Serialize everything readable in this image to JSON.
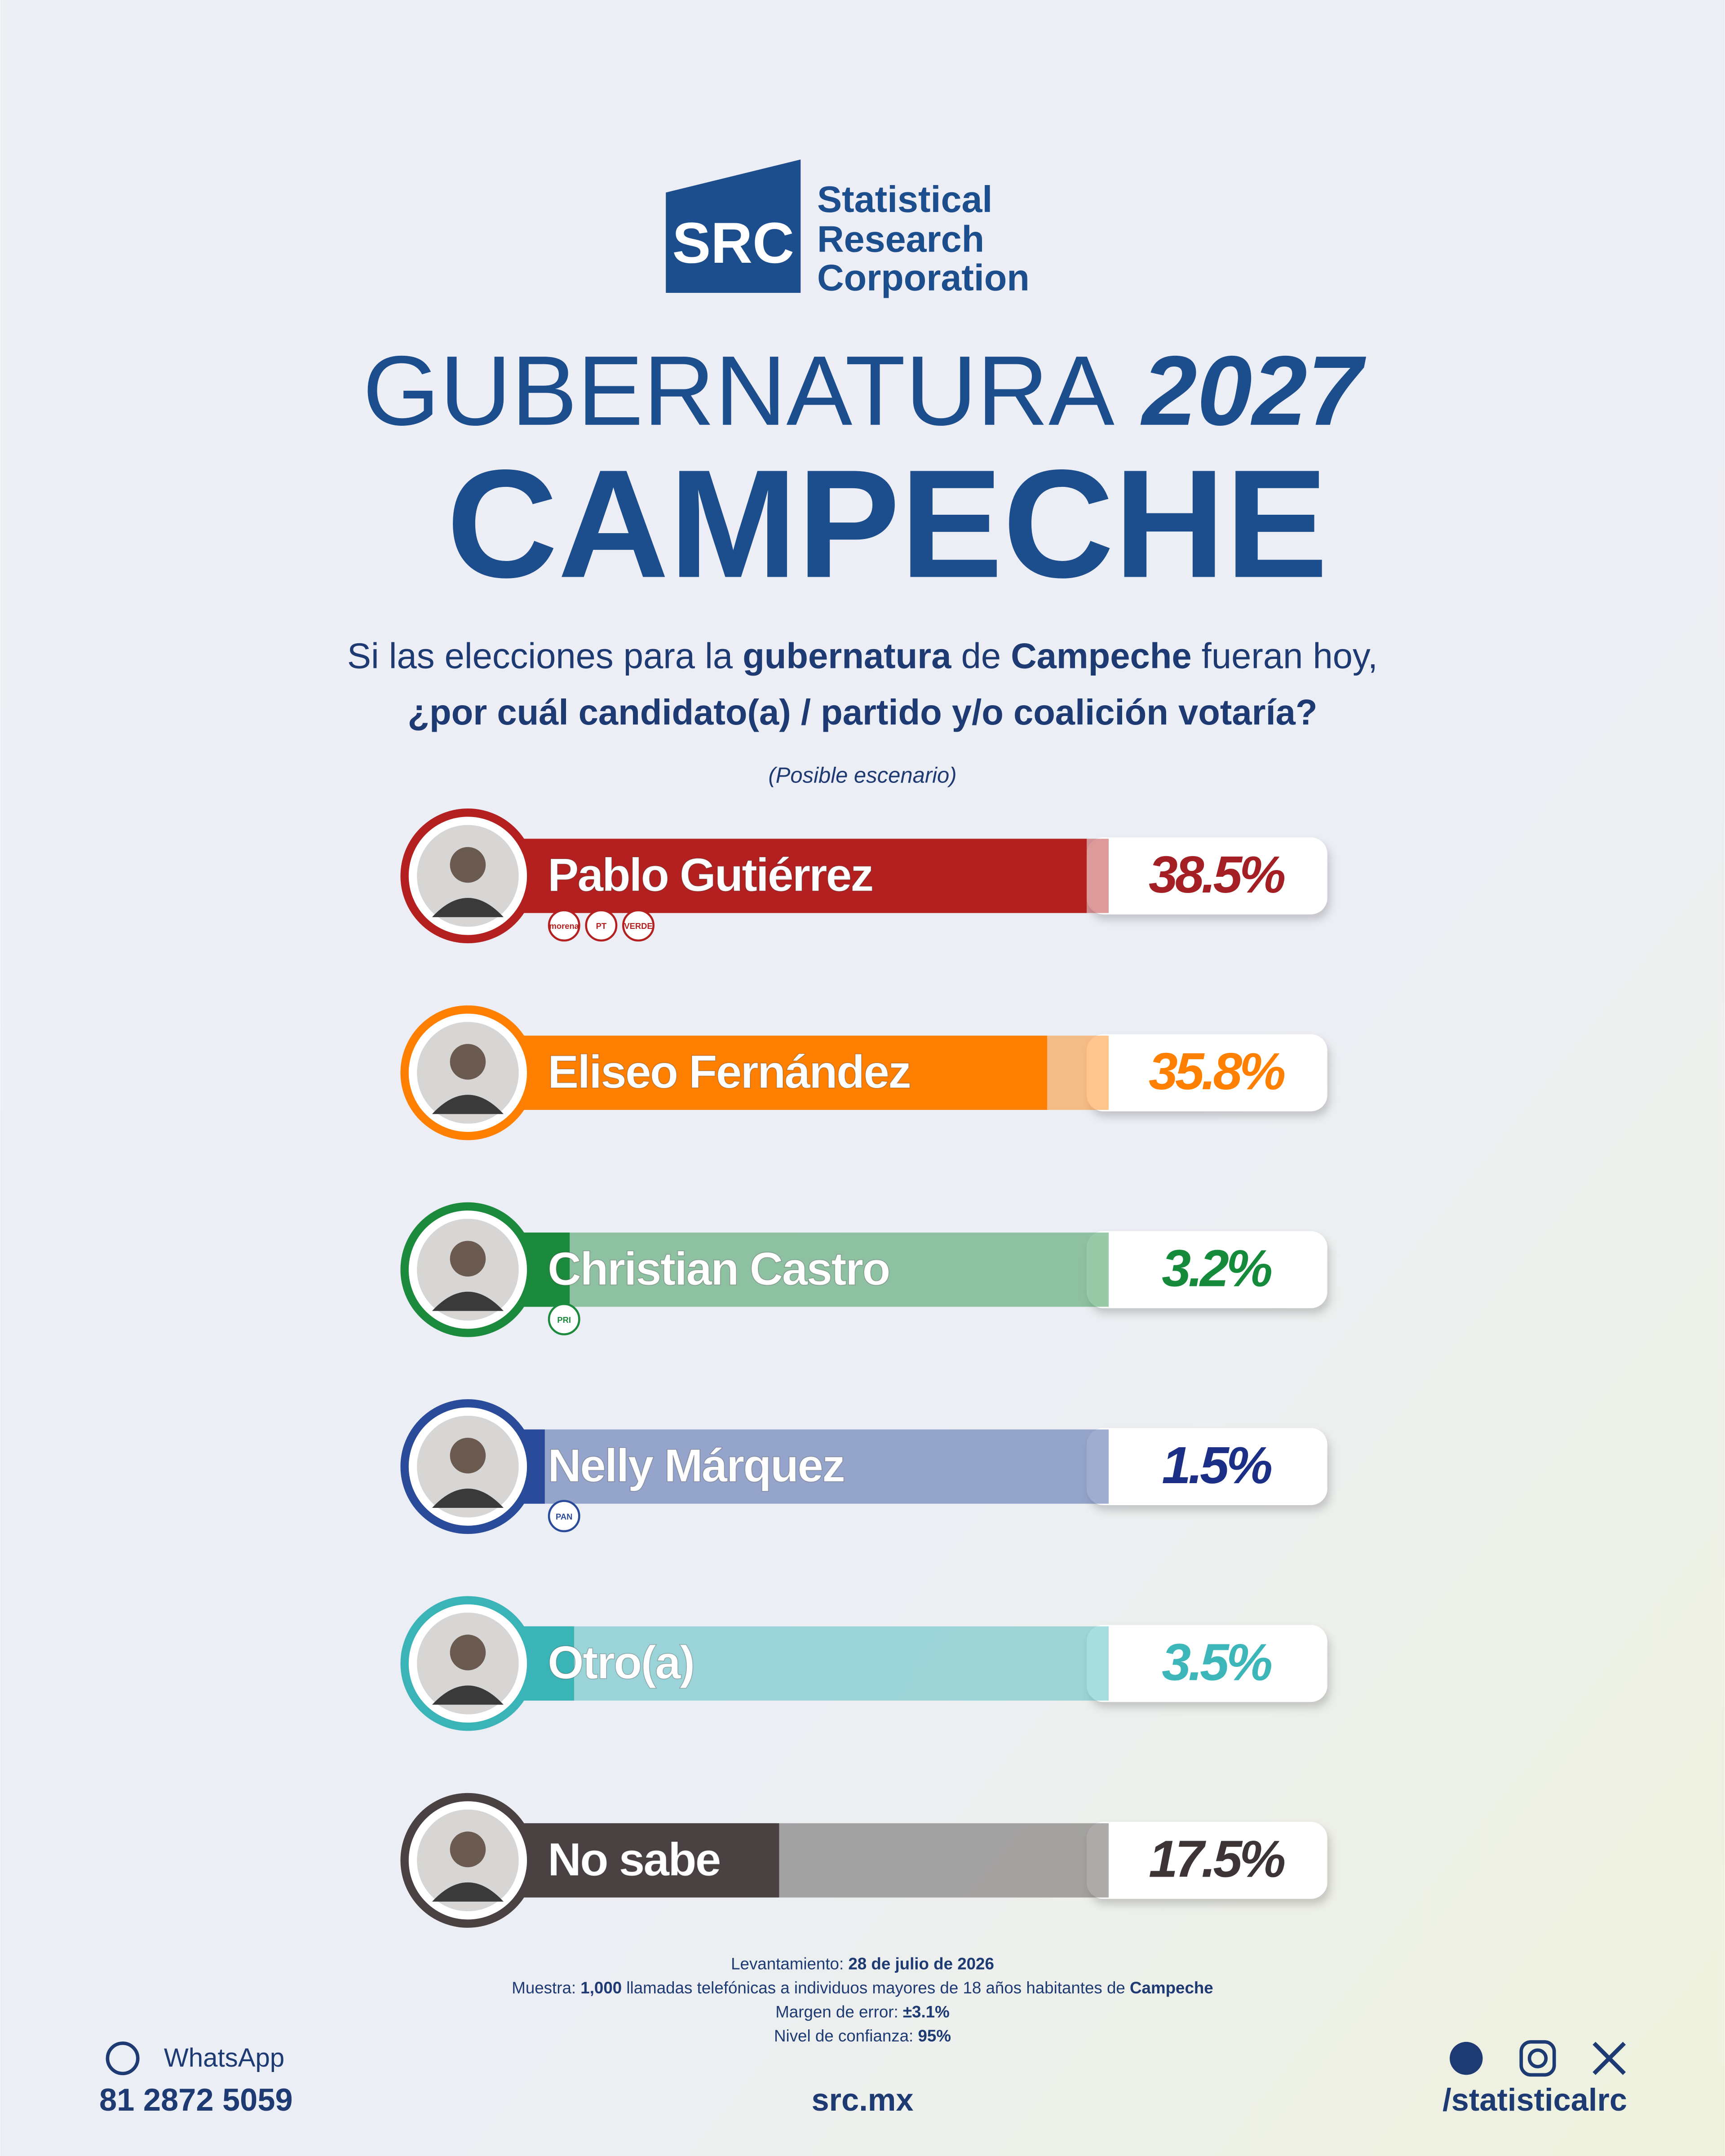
{
  "logo": {
    "mark": "SRC",
    "lines": [
      "Statistical",
      "Research",
      "Corporation"
    ]
  },
  "chart_data": {
    "type": "bar",
    "orientation": "horizontal",
    "title": [
      "GUBERNATURA",
      "2027"
    ],
    "subtitle": "CAMPECHE",
    "question": {
      "line1": [
        "Si las elecciones para la ",
        "gubernatura",
        " de ",
        "Campeche",
        " fueran hoy,"
      ],
      "line2": "¿por cuál candidato(a) / partido y/o coalición votaría?"
    },
    "note": "(Posible escenario)",
    "categories": [
      "Pablo Gutiérrez",
      "Eliseo Fernández",
      "Christian Castro",
      "Nelly Márquez",
      "Otro(a)",
      "No sabe"
    ],
    "parties": [
      [
        "morena",
        "PT",
        "VERDE"
      ],
      [],
      [
        "PRI"
      ],
      [
        "PAN"
      ],
      [],
      []
    ],
    "values": [
      38.5,
      35.8,
      3.2,
      1.5,
      3.5,
      17.5
    ],
    "value_labels": [
      "38.5%",
      "35.8%",
      "3.2%",
      "1.5%",
      "3.5%",
      "17.5%"
    ],
    "colors": [
      "#b3201f",
      "#ff7f00",
      "#1c8a3c",
      "#2a4a9a",
      "#3ab4b6",
      "#4a4242"
    ],
    "label_colors": [
      "#a31f24",
      "#ff7f00",
      "#148a3a",
      "#1c2f86",
      "#3cb6b8",
      "#3d3535"
    ],
    "xlim": [
      0,
      40
    ]
  },
  "methodology": [
    [
      "Levantamiento: ",
      "28 de julio de 2026"
    ],
    [
      "Muestra: ",
      "1,000",
      " llamadas telefónicas a individuos mayores de 18 años habitantes de ",
      "Campeche"
    ],
    [
      "Margen de error: ",
      "±3.1%"
    ],
    [
      "Nivel de confianza: ",
      "95%"
    ]
  ],
  "footer": {
    "whatsapp_label": "WhatsApp",
    "phone": "81 2872 5059",
    "website": "src.mx",
    "handle": "/statisticalrc"
  }
}
